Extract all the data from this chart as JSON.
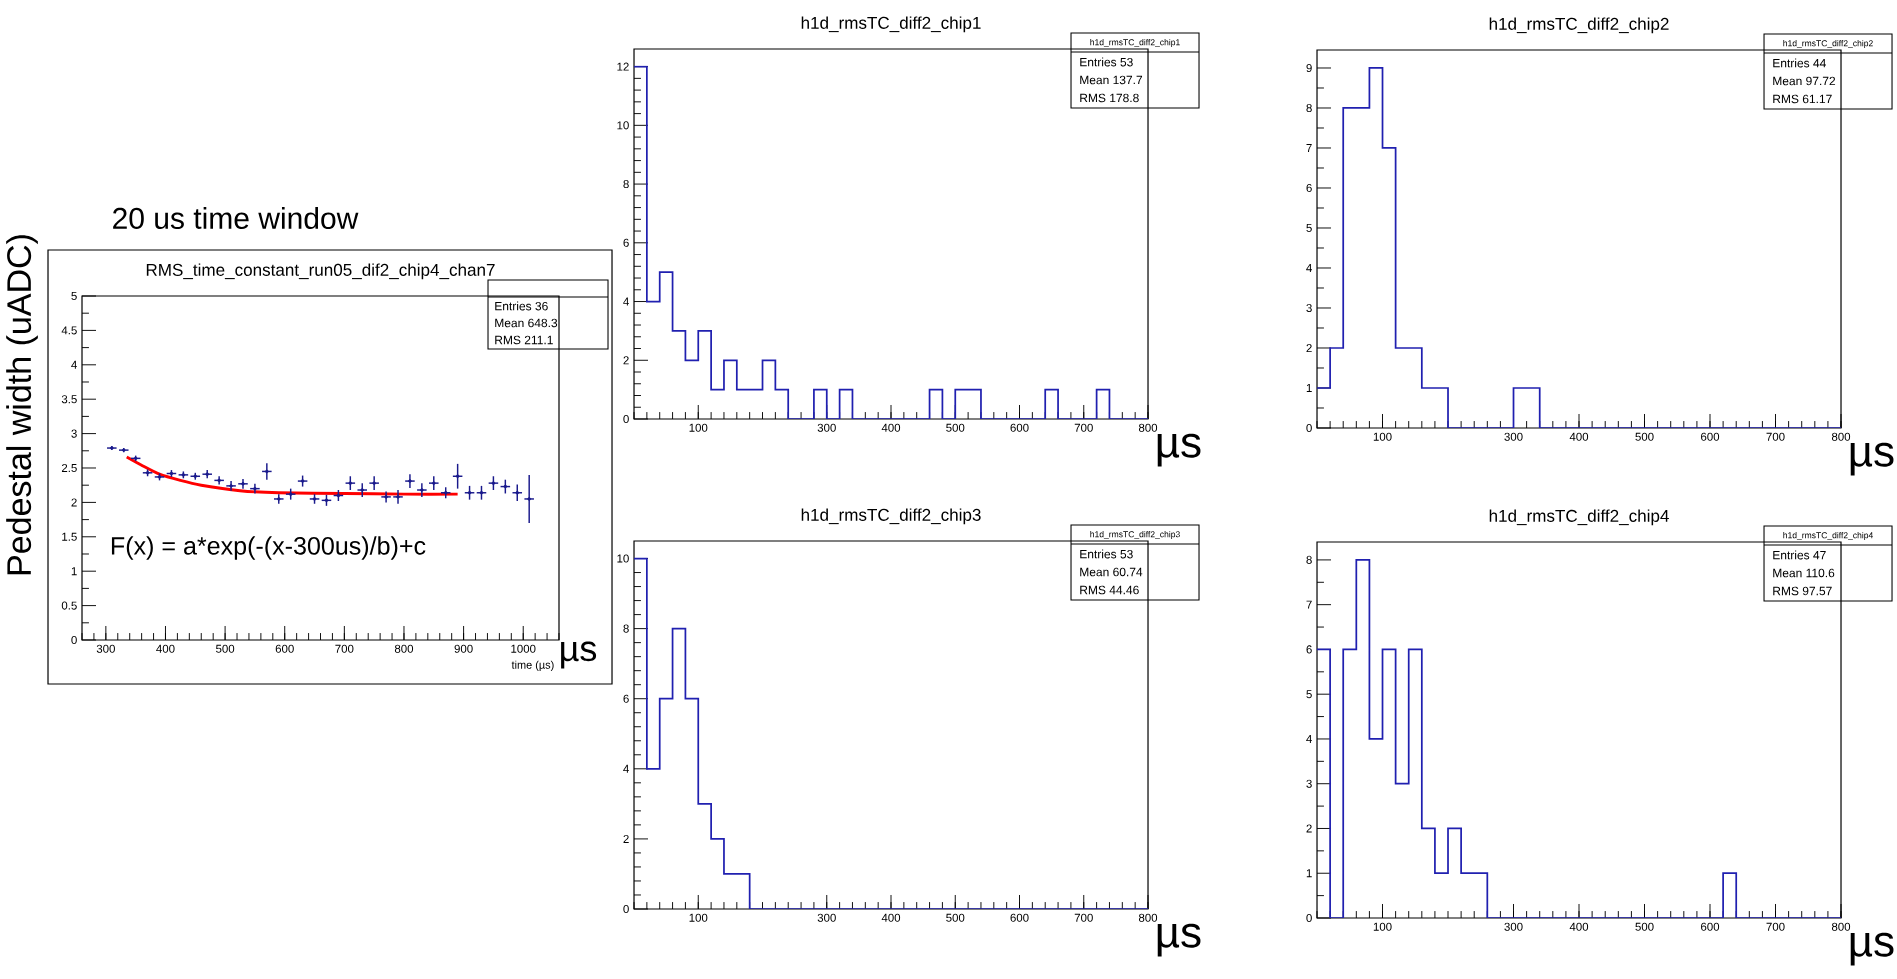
{
  "chart_data": [
    {
      "type": "scatter",
      "title": "RMS_time_constant_run05_dif2_chip4_chan7",
      "xlabel": "time (µs)",
      "ylabel": "Pedestal width (uADC)",
      "xlim": [
        260,
        1060
      ],
      "ylim": [
        0,
        5
      ],
      "xticks": [
        300,
        400,
        500,
        600,
        700,
        800,
        900,
        1000
      ],
      "yticks": [
        0,
        0.5,
        1,
        1.5,
        2,
        2.5,
        3,
        3.5,
        4,
        4.5,
        5
      ],
      "annotations": [
        "20 us time window",
        "F(x) =  a*exp(-(x-300us)/b)+c",
        "Entries 36",
        "Mean 648.3",
        "RMS 211.1",
        "µs"
      ],
      "series": [
        {
          "type": "line",
          "color": "#ff0000",
          "x": [
            335,
            360,
            390,
            425,
            460,
            525,
            590,
            700,
            800,
            890
          ],
          "values": [
            2.66,
            2.54,
            2.41,
            2.32,
            2.25,
            2.17,
            2.14,
            2.13,
            2.12,
            2.12
          ]
        },
        {
          "type": "scatter",
          "marker": "circle",
          "color": "#1a1a8c",
          "x": [
            310,
            330,
            350,
            370,
            390,
            410,
            430,
            450,
            470,
            490,
            510,
            530,
            550,
            570,
            590,
            610,
            630,
            650,
            670,
            690,
            710,
            730,
            750,
            770,
            790,
            810,
            830,
            850,
            870,
            890,
            910,
            930,
            950,
            970,
            990,
            1010
          ],
          "values": [
            2.79,
            2.76,
            2.64,
            2.43,
            2.37,
            2.42,
            2.4,
            2.38,
            2.41,
            2.32,
            2.24,
            2.27,
            2.2,
            2.45,
            2.05,
            2.12,
            2.31,
            2.05,
            2.03,
            2.1,
            2.28,
            2.18,
            2.28,
            2.08,
            2.08,
            2.31,
            2.18,
            2.28,
            2.14,
            2.38,
            2.14,
            2.14,
            2.28,
            2.23,
            2.14,
            2.05
          ],
          "errors": [
            0.03,
            0.03,
            0.04,
            0.05,
            0.05,
            0.05,
            0.05,
            0.05,
            0.06,
            0.06,
            0.07,
            0.07,
            0.07,
            0.12,
            0.07,
            0.08,
            0.08,
            0.07,
            0.08,
            0.08,
            0.1,
            0.1,
            0.1,
            0.08,
            0.1,
            0.1,
            0.1,
            0.1,
            0.08,
            0.18,
            0.1,
            0.1,
            0.1,
            0.1,
            0.12,
            0.35
          ],
          "xerrors": [
            8,
            8,
            8,
            8,
            8,
            8,
            8,
            8,
            8,
            8,
            8,
            8,
            8,
            8,
            8,
            8,
            8,
            8,
            8,
            8,
            8,
            8,
            8,
            8,
            8,
            8,
            8,
            8,
            8,
            8,
            8,
            8,
            8,
            8,
            8,
            8
          ]
        }
      ]
    },
    {
      "type": "histogram",
      "title": "h1d_rmsTC_diff2_chip1",
      "xlabel": "µs",
      "color": "#2020b0",
      "bins": [
        0,
        20,
        40,
        60,
        80,
        100,
        120,
        140,
        160,
        180,
        200,
        220,
        240,
        260,
        280,
        300,
        320,
        340,
        360,
        380,
        400,
        420,
        440,
        460,
        480,
        500,
        520,
        540,
        560,
        580,
        600,
        620,
        640,
        660,
        680,
        700,
        720,
        740,
        760,
        780,
        800
      ],
      "values": [
        12,
        4,
        5,
        3,
        2,
        3,
        1,
        2,
        1,
        1,
        2,
        1,
        0,
        0,
        1,
        0,
        1,
        0,
        0,
        0,
        0,
        0,
        0,
        1,
        0,
        1,
        1,
        0,
        0,
        0,
        0,
        0,
        1,
        0,
        0,
        0,
        1,
        0,
        0,
        0
      ],
      "xlim": [
        0,
        800
      ],
      "ylim": [
        0,
        12.6
      ],
      "xticks": [
        100,
        300,
        400,
        500,
        600,
        700,
        800
      ],
      "yticks": [
        0,
        2,
        4,
        6,
        8,
        10,
        12
      ],
      "annotations": [
        "h1d_rmsTC_diff2_chip1",
        "Entries 53",
        "Mean 137.7",
        "RMS 178.8"
      ]
    },
    {
      "type": "histogram",
      "title": "h1d_rmsTC_diff2_chip2",
      "xlabel": "µs",
      "color": "#2020b0",
      "bins": [
        0,
        20,
        40,
        60,
        80,
        100,
        120,
        140,
        160,
        180,
        200,
        220,
        240,
        260,
        280,
        300,
        320,
        340,
        360,
        380,
        400,
        420,
        440,
        460,
        480,
        500,
        520,
        540,
        560,
        580,
        600,
        620,
        640,
        660,
        680,
        700,
        720,
        740,
        760,
        780,
        800
      ],
      "values": [
        1,
        2,
        8,
        8,
        9,
        7,
        2,
        2,
        1,
        1,
        0,
        0,
        0,
        0,
        0,
        1,
        1,
        0,
        0,
        0,
        0,
        0,
        0,
        0,
        0,
        0,
        0,
        0,
        0,
        0,
        0,
        0,
        0,
        0,
        0,
        0,
        0,
        0,
        0,
        0
      ],
      "xlim": [
        0,
        800
      ],
      "ylim": [
        0,
        9.45
      ],
      "xticks": [
        100,
        300,
        400,
        500,
        600,
        700,
        800
      ],
      "yticks": [
        0,
        1,
        2,
        3,
        4,
        5,
        6,
        7,
        8,
        9
      ],
      "annotations": [
        "h1d_rmsTC_diff2_chip2",
        "Entries 44",
        "Mean 97.72",
        "RMS 61.17"
      ]
    },
    {
      "type": "histogram",
      "title": "h1d_rmsTC_diff2_chip3",
      "xlabel": "µs",
      "color": "#2020b0",
      "bins": [
        0,
        20,
        40,
        60,
        80,
        100,
        120,
        140,
        160,
        180,
        200,
        220,
        240,
        260,
        280,
        300,
        320,
        340,
        360,
        380,
        400,
        420,
        440,
        460,
        480,
        500,
        520,
        540,
        560,
        580,
        600,
        620,
        640,
        660,
        680,
        700,
        720,
        740,
        760,
        780,
        800
      ],
      "values": [
        10,
        4,
        6,
        8,
        6,
        3,
        2,
        1,
        1,
        0,
        0,
        0,
        0,
        0,
        0,
        0,
        0,
        0,
        0,
        0,
        0,
        0,
        0,
        0,
        0,
        0,
        0,
        0,
        0,
        0,
        0,
        0,
        0,
        0,
        0,
        0,
        0,
        0,
        0,
        0
      ],
      "xlim": [
        0,
        800
      ],
      "ylim": [
        0,
        10.5
      ],
      "xticks": [
        100,
        300,
        400,
        500,
        600,
        700,
        800
      ],
      "yticks": [
        0,
        2,
        4,
        6,
        8,
        10
      ],
      "annotations": [
        "h1d_rmsTC_diff2_chip3",
        "Entries 53",
        "Mean 60.74",
        "RMS 44.46"
      ]
    },
    {
      "type": "histogram",
      "title": "h1d_rmsTC_diff2_chip4",
      "xlabel": "µs",
      "color": "#2020b0",
      "bins": [
        0,
        20,
        40,
        60,
        80,
        100,
        120,
        140,
        160,
        180,
        200,
        220,
        240,
        260,
        280,
        300,
        320,
        340,
        360,
        380,
        400,
        420,
        440,
        460,
        480,
        500,
        520,
        540,
        560,
        580,
        600,
        620,
        640,
        660,
        680,
        700,
        720,
        740,
        760,
        780,
        800
      ],
      "values": [
        6,
        0,
        6,
        8,
        4,
        6,
        3,
        6,
        2,
        1,
        2,
        1,
        1,
        0,
        0,
        0,
        0,
        0,
        0,
        0,
        0,
        0,
        0,
        0,
        0,
        0,
        0,
        0,
        0,
        0,
        0,
        1,
        0,
        0,
        0,
        0,
        0,
        0,
        0,
        0
      ],
      "xlim": [
        0,
        800
      ],
      "ylim": [
        0,
        8.4
      ],
      "xticks": [
        100,
        300,
        400,
        500,
        600,
        700,
        800
      ],
      "yticks": [
        0,
        1,
        2,
        3,
        4,
        5,
        6,
        7,
        8
      ],
      "annotations": [
        "h1d_rmsTC_diff2_chip4",
        "Entries 47",
        "Mean 110.6",
        "RMS 97.57"
      ]
    }
  ]
}
